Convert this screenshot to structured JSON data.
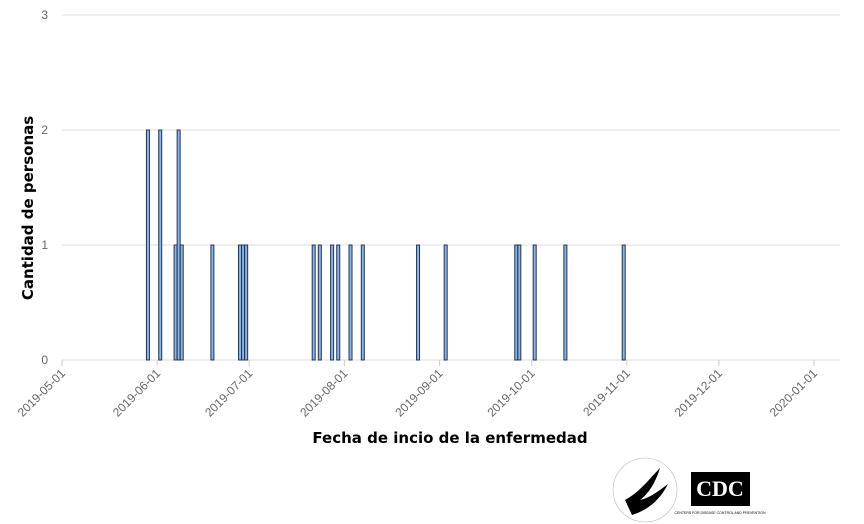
{
  "chart_data": {
    "type": "bar",
    "x_label": "Fecha de incio de la enfermedad",
    "y_label": "Cantidad de personas",
    "x": [
      "2019-05-29",
      "2019-06-02",
      "2019-06-07",
      "2019-06-08",
      "2019-06-09",
      "2019-06-19",
      "2019-06-28",
      "2019-06-29",
      "2019-06-30",
      "2019-07-22",
      "2019-07-24",
      "2019-07-28",
      "2019-07-30",
      "2019-08-03",
      "2019-08-07",
      "2019-08-25",
      "2019-09-03",
      "2019-09-26",
      "2019-09-27",
      "2019-10-02",
      "2019-10-12",
      "2019-10-31"
    ],
    "values": [
      2,
      2,
      1,
      2,
      1,
      1,
      1,
      1,
      1,
      1,
      1,
      1,
      1,
      1,
      1,
      1,
      1,
      1,
      1,
      1,
      1,
      1
    ],
    "color": "#8db4e2",
    "xlim": [
      "2019-05-01",
      "2020-01-01"
    ],
    "xticks": [
      "2019-05-01",
      "2019-06-01",
      "2019-07-01",
      "2019-08-01",
      "2019-09-01",
      "2019-10-01",
      "2019-11-01",
      "2019-12-01",
      "2020-01-01"
    ],
    "ylim": [
      0,
      3
    ],
    "yticks": [
      0,
      1,
      2,
      3
    ],
    "grid": true
  },
  "logos": {
    "cdc": "CDC",
    "cdc_subtitle": "CENTERS FOR DISEASE CONTROL AND PREVENTION"
  }
}
